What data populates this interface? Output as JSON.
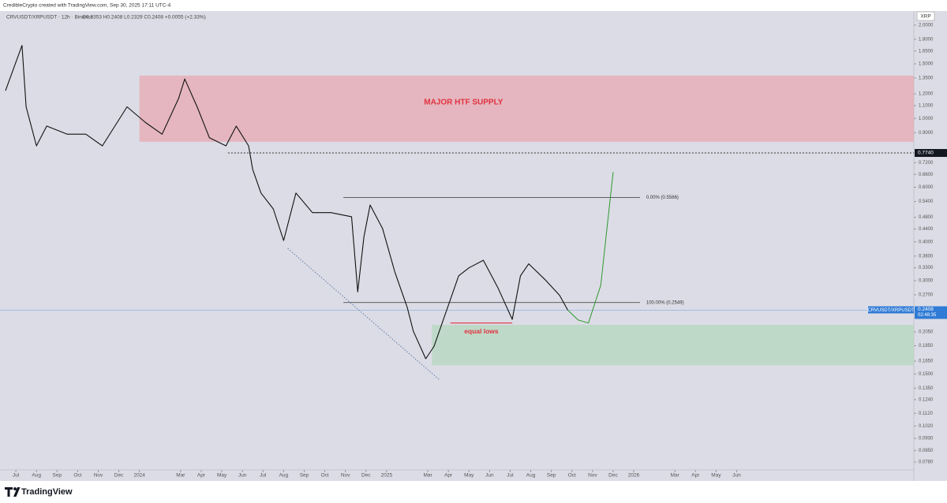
{
  "chart_data": {
    "type": "line",
    "header": "CredibleCrypto created with TradingView.com, Sep 30, 2025 17:11 UTC-4",
    "title": "CRVUSDT/XRPUSDT · 12h · Binance",
    "info": "O0.2353 H0.2408 L0.2329 C0.2408 +0.0055 (+2.33%)",
    "currency": "XRP",
    "brand": "TradingView",
    "log_scale": true,
    "grid": false,
    "xlim": [
      -0.77,
      43.6
    ],
    "ylim": [
      0.0736,
      2.22
    ],
    "xticks": [
      {
        "value": 0,
        "label": "Jul"
      },
      {
        "value": 1,
        "label": "Aug"
      },
      {
        "value": 2,
        "label": "Sep"
      },
      {
        "value": 3,
        "label": "Oct"
      },
      {
        "value": 4,
        "label": "Nov"
      },
      {
        "value": 5,
        "label": "Dec"
      },
      {
        "value": 6,
        "label": "2024"
      },
      {
        "value": 8,
        "label": "Mar"
      },
      {
        "value": 9,
        "label": "Apr"
      },
      {
        "value": 10,
        "label": "May"
      },
      {
        "value": 11,
        "label": "Jun"
      },
      {
        "value": 12,
        "label": "Jul"
      },
      {
        "value": 13,
        "label": "Aug"
      },
      {
        "value": 14,
        "label": "Sep"
      },
      {
        "value": 15,
        "label": "Oct"
      },
      {
        "value": 16,
        "label": "Nov"
      },
      {
        "value": 17,
        "label": "Dec"
      },
      {
        "value": 18,
        "label": "2025"
      },
      {
        "value": 20,
        "label": "Mar"
      },
      {
        "value": 21,
        "label": "Apr"
      },
      {
        "value": 22,
        "label": "May"
      },
      {
        "value": 23,
        "label": "Jun"
      },
      {
        "value": 24,
        "label": "Jul"
      },
      {
        "value": 25,
        "label": "Aug"
      },
      {
        "value": 26,
        "label": "Sep"
      },
      {
        "value": 27,
        "label": "Oct"
      },
      {
        "value": 28,
        "label": "Nov"
      },
      {
        "value": 29,
        "label": "Dec"
      },
      {
        "value": 30,
        "label": "2026"
      },
      {
        "value": 32,
        "label": "Mar"
      },
      {
        "value": 33,
        "label": "Apr"
      },
      {
        "value": 34,
        "label": "May"
      },
      {
        "value": 35,
        "label": "Jun"
      }
    ],
    "yticks": [
      {
        "value": 2.0,
        "label": "2.0000"
      },
      {
        "value": 1.8,
        "label": "1.8000"
      },
      {
        "value": 1.65,
        "label": "1.6500"
      },
      {
        "value": 1.5,
        "label": "1.5000"
      },
      {
        "value": 1.35,
        "label": "1.3500"
      },
      {
        "value": 1.2,
        "label": "1.2000"
      },
      {
        "value": 1.1,
        "label": "1.1000"
      },
      {
        "value": 1.0,
        "label": "1.0000"
      },
      {
        "value": 0.9,
        "label": "0.9000"
      },
      {
        "value": 0.72,
        "label": "0.7200"
      },
      {
        "value": 0.66,
        "label": "0.6600"
      },
      {
        "value": 0.6,
        "label": "0.6000"
      },
      {
        "value": 0.54,
        "label": "0.5400"
      },
      {
        "value": 0.48,
        "label": "0.4800"
      },
      {
        "value": 0.44,
        "label": "0.4400"
      },
      {
        "value": 0.4,
        "label": "0.4000"
      },
      {
        "value": 0.36,
        "label": "0.3600"
      },
      {
        "value": 0.33,
        "label": "0.3300"
      },
      {
        "value": 0.3,
        "label": "0.3000"
      },
      {
        "value": 0.27,
        "label": "0.2700"
      },
      {
        "value": 0.205,
        "label": "0.2050"
      },
      {
        "value": 0.185,
        "label": "0.1850"
      },
      {
        "value": 0.165,
        "label": "0.1650"
      },
      {
        "value": 0.15,
        "label": "0.1500"
      },
      {
        "value": 0.135,
        "label": "0.1350"
      },
      {
        "value": 0.124,
        "label": "0.1240"
      },
      {
        "value": 0.112,
        "label": "0.1120"
      },
      {
        "value": 0.102,
        "label": "0.1020"
      },
      {
        "value": 0.093,
        "label": "0.0930"
      },
      {
        "value": 0.085,
        "label": "0.0850"
      },
      {
        "value": 0.078,
        "label": "0.0780"
      }
    ],
    "series": [
      {
        "color": "#111111",
        "x": [
          -0.5,
          0.3,
          0.5,
          1.0,
          1.5,
          2.5,
          3.4,
          4.2,
          5.4,
          6.3,
          7.1,
          7.9,
          8.2,
          8.8,
          9.4,
          10.2,
          10.7,
          11.3,
          11.5,
          11.9,
          12.5,
          13.0,
          13.6,
          14.4,
          15.3,
          16.3,
          16.6,
          16.9,
          17.2,
          17.8,
          18.4,
          19.0,
          19.3,
          19.9,
          20.3,
          20.7,
          21.1,
          21.5,
          22.0,
          22.7,
          23.4,
          24.1,
          24.5,
          24.9,
          25.7,
          26.4,
          26.8
        ],
        "values": [
          1.23,
          1.72,
          1.09,
          0.816,
          0.945,
          0.89,
          0.89,
          0.816,
          1.09,
          0.97,
          0.89,
          1.16,
          1.34,
          1.09,
          0.866,
          0.816,
          0.945,
          0.816,
          0.685,
          0.575,
          0.511,
          0.404,
          0.575,
          0.497,
          0.497,
          0.482,
          0.276,
          0.416,
          0.526,
          0.442,
          0.32,
          0.246,
          0.206,
          0.168,
          0.184,
          0.219,
          0.261,
          0.311,
          0.33,
          0.349,
          0.285,
          0.225,
          0.311,
          0.34,
          0.302,
          0.269,
          0.241
        ]
      },
      {
        "color": "#2e9a2e",
        "x": [
          26.8,
          27.3,
          27.8,
          28.4,
          28.7,
          29.0
        ],
        "values": [
          0.241,
          0.224,
          0.219,
          0.29,
          0.442,
          0.672
        ]
      }
    ],
    "zones": [
      {
        "label": "MAJOR HTF SUPPLY",
        "x0": 6.0,
        "y0": 0.841,
        "y1": 1.375,
        "color": "#e8a9b2"
      },
      {
        "x0": 20.2,
        "y0": 0.16,
        "y1": 0.216,
        "color": "#b5d8bd"
      }
    ],
    "levels": [
      {
        "value": 0.5566,
        "label": "0.00% (0.5566)",
        "x0": 15.9,
        "x1": 30.3
      },
      {
        "value": 0.2549,
        "label": "100.00% (0.2549)",
        "x0": 15.9,
        "x1": 30.3
      }
    ],
    "dotted_level": {
      "value": 0.774,
      "label": "0.7740",
      "x0": 10.3
    },
    "trendline": {
      "x": [
        13.2,
        20.6
      ],
      "values": [
        0.381,
        0.143
      ]
    },
    "equal_lows": {
      "label": "equal lows",
      "value": 0.219,
      "x0": 21.1,
      "x1": 24.1
    },
    "last_price": {
      "value": 0.2408,
      "symbol": "CRVUSDT/XRPUSDT",
      "countdown": "02:48:35"
    }
  }
}
